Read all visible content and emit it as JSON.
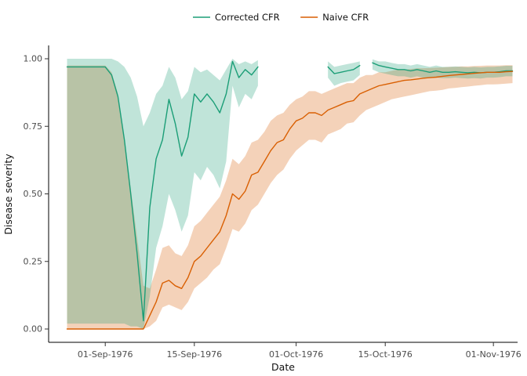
{
  "figure": {
    "background": "#ffffff",
    "axis_color": "#000000",
    "tick_label_color": "#4d4d4d"
  },
  "legend": {
    "position": "top-center",
    "items": [
      {
        "label": "Corrected CFR",
        "color": "#1b9e77"
      },
      {
        "label": "Naive CFR",
        "color": "#d95f02"
      }
    ]
  },
  "chart_data": {
    "type": "line",
    "title": "",
    "xlabel": "Date",
    "ylabel": "Disease severity",
    "grid": false,
    "legend_position": "top",
    "ylim": [
      0,
      1
    ],
    "x_unit": "days relative to 01-Sep-1976",
    "x_ticks": [
      {
        "day": 0,
        "label": "01-Sep-1976"
      },
      {
        "day": 14,
        "label": "15-Sep-1976"
      },
      {
        "day": 30,
        "label": "01-Oct-1976"
      },
      {
        "day": 44,
        "label": "15-Oct-1976"
      },
      {
        "day": 61,
        "label": "01-Nov-1976"
      }
    ],
    "y_ticks": [
      {
        "value": 0.0,
        "label": "0.00"
      },
      {
        "value": 0.25,
        "label": "0.25"
      },
      {
        "value": 0.5,
        "label": "0.50"
      },
      {
        "value": 0.75,
        "label": "0.75"
      },
      {
        "value": 1.0,
        "label": "1.00"
      }
    ],
    "x": [
      -6,
      -5,
      -4,
      -3,
      -2,
      -1,
      0,
      1,
      2,
      3,
      4,
      5,
      6,
      7,
      8,
      9,
      10,
      11,
      12,
      13,
      14,
      15,
      16,
      17,
      18,
      19,
      20,
      21,
      22,
      23,
      24,
      25,
      26,
      27,
      28,
      29,
      30,
      31,
      32,
      33,
      34,
      35,
      36,
      37,
      38,
      39,
      40,
      41,
      42,
      43,
      44,
      45,
      46,
      47,
      48,
      49,
      50,
      51,
      52,
      53,
      54,
      55,
      56,
      57,
      58,
      59,
      60,
      61,
      62,
      63,
      64
    ],
    "series": [
      {
        "id": "corrected-cfr",
        "name": "Corrected CFR",
        "color": "#1b9e77",
        "ribbon_opacity": 0.28,
        "values": [
          0.97,
          0.97,
          0.97,
          0.97,
          0.97,
          0.97,
          0.97,
          0.94,
          0.86,
          0.7,
          0.5,
          0.28,
          0.03,
          0.45,
          0.63,
          0.7,
          0.85,
          0.76,
          0.64,
          0.71,
          0.87,
          0.84,
          0.87,
          0.84,
          0.8,
          0.87,
          0.99,
          0.93,
          0.96,
          0.94,
          0.97,
          null,
          null,
          null,
          null,
          null,
          null,
          null,
          null,
          null,
          null,
          0.97,
          0.945,
          0.95,
          0.955,
          0.96,
          0.975,
          null,
          0.985,
          0.975,
          0.97,
          0.965,
          0.96,
          0.96,
          0.955,
          0.96,
          0.955,
          0.95,
          0.955,
          0.95,
          0.95,
          0.952,
          0.95,
          0.948,
          0.95,
          0.948,
          0.95,
          0.95,
          0.952,
          0.955,
          0.955
        ],
        "ci_low": [
          0.02,
          0.02,
          0.02,
          0.02,
          0.02,
          0.02,
          0.02,
          0.02,
          0.02,
          0.02,
          0.01,
          0.01,
          0.0,
          0.12,
          0.3,
          0.38,
          0.5,
          0.44,
          0.36,
          0.42,
          0.58,
          0.55,
          0.6,
          0.57,
          0.52,
          0.62,
          0.9,
          0.82,
          0.87,
          0.85,
          0.9,
          null,
          null,
          null,
          null,
          null,
          null,
          null,
          null,
          null,
          null,
          0.93,
          0.9,
          0.91,
          0.915,
          0.92,
          0.94,
          null,
          0.96,
          0.95,
          0.945,
          0.94,
          0.935,
          0.935,
          0.93,
          0.935,
          0.93,
          0.928,
          0.93,
          0.928,
          0.928,
          0.93,
          0.928,
          0.927,
          0.928,
          0.927,
          0.93,
          0.93,
          0.932,
          0.935,
          0.935
        ],
        "ci_high": [
          1.0,
          1.0,
          1.0,
          1.0,
          1.0,
          1.0,
          1.0,
          1.0,
          0.99,
          0.97,
          0.93,
          0.86,
          0.75,
          0.8,
          0.87,
          0.9,
          0.97,
          0.93,
          0.85,
          0.88,
          0.97,
          0.95,
          0.96,
          0.94,
          0.92,
          0.96,
          1.0,
          0.98,
          0.99,
          0.98,
          0.995,
          null,
          null,
          null,
          null,
          null,
          null,
          null,
          null,
          null,
          null,
          0.99,
          0.97,
          0.975,
          0.98,
          0.985,
          0.99,
          null,
          0.998,
          0.99,
          0.99,
          0.985,
          0.98,
          0.98,
          0.975,
          0.98,
          0.975,
          0.97,
          0.975,
          0.97,
          0.97,
          0.972,
          0.97,
          0.968,
          0.97,
          0.968,
          0.97,
          0.97,
          0.972,
          0.974,
          0.974
        ]
      },
      {
        "id": "naive-cfr",
        "name": "Naive CFR",
        "color": "#d95f02",
        "ribbon_opacity": 0.28,
        "values": [
          0,
          0,
          0,
          0,
          0,
          0,
          0,
          0,
          0,
          0,
          0,
          0,
          0,
          0.05,
          0.1,
          0.17,
          0.18,
          0.16,
          0.15,
          0.19,
          0.25,
          0.27,
          0.3,
          0.33,
          0.36,
          0.42,
          0.5,
          0.48,
          0.51,
          0.57,
          0.58,
          0.62,
          0.66,
          0.69,
          0.7,
          0.74,
          0.77,
          0.78,
          0.8,
          0.8,
          0.79,
          0.81,
          0.82,
          0.83,
          0.84,
          0.845,
          0.87,
          0.88,
          0.89,
          0.9,
          0.905,
          0.91,
          0.915,
          0.92,
          0.922,
          0.925,
          0.928,
          0.93,
          0.932,
          0.935,
          0.938,
          0.94,
          0.942,
          0.944,
          0.946,
          0.948,
          0.95,
          0.95,
          0.95,
          0.952,
          0.953
        ],
        "ci_low": [
          0,
          0,
          0,
          0,
          0,
          0,
          0,
          0,
          0,
          0,
          0,
          0,
          0,
          0.01,
          0.03,
          0.08,
          0.09,
          0.08,
          0.07,
          0.1,
          0.15,
          0.17,
          0.19,
          0.22,
          0.24,
          0.3,
          0.37,
          0.36,
          0.39,
          0.44,
          0.46,
          0.5,
          0.54,
          0.57,
          0.59,
          0.63,
          0.66,
          0.68,
          0.7,
          0.7,
          0.69,
          0.72,
          0.73,
          0.74,
          0.76,
          0.765,
          0.79,
          0.81,
          0.82,
          0.83,
          0.84,
          0.85,
          0.855,
          0.86,
          0.865,
          0.87,
          0.875,
          0.88,
          0.882,
          0.885,
          0.89,
          0.892,
          0.895,
          0.897,
          0.9,
          0.902,
          0.905,
          0.905,
          0.906,
          0.908,
          0.91
        ],
        "ci_high": [
          0.975,
          0.975,
          0.975,
          0.975,
          0.975,
          0.975,
          0.975,
          0.95,
          0.87,
          0.71,
          0.52,
          0.34,
          0.16,
          0.15,
          0.22,
          0.3,
          0.31,
          0.28,
          0.27,
          0.31,
          0.38,
          0.4,
          0.43,
          0.46,
          0.49,
          0.55,
          0.63,
          0.61,
          0.64,
          0.69,
          0.7,
          0.73,
          0.77,
          0.79,
          0.8,
          0.83,
          0.85,
          0.86,
          0.88,
          0.88,
          0.87,
          0.88,
          0.89,
          0.9,
          0.91,
          0.91,
          0.93,
          0.94,
          0.94,
          0.95,
          0.95,
          0.955,
          0.96,
          0.96,
          0.962,
          0.965,
          0.965,
          0.966,
          0.967,
          0.968,
          0.97,
          0.97,
          0.972,
          0.972,
          0.973,
          0.974,
          0.975,
          0.975,
          0.975,
          0.976,
          0.976
        ]
      }
    ]
  }
}
